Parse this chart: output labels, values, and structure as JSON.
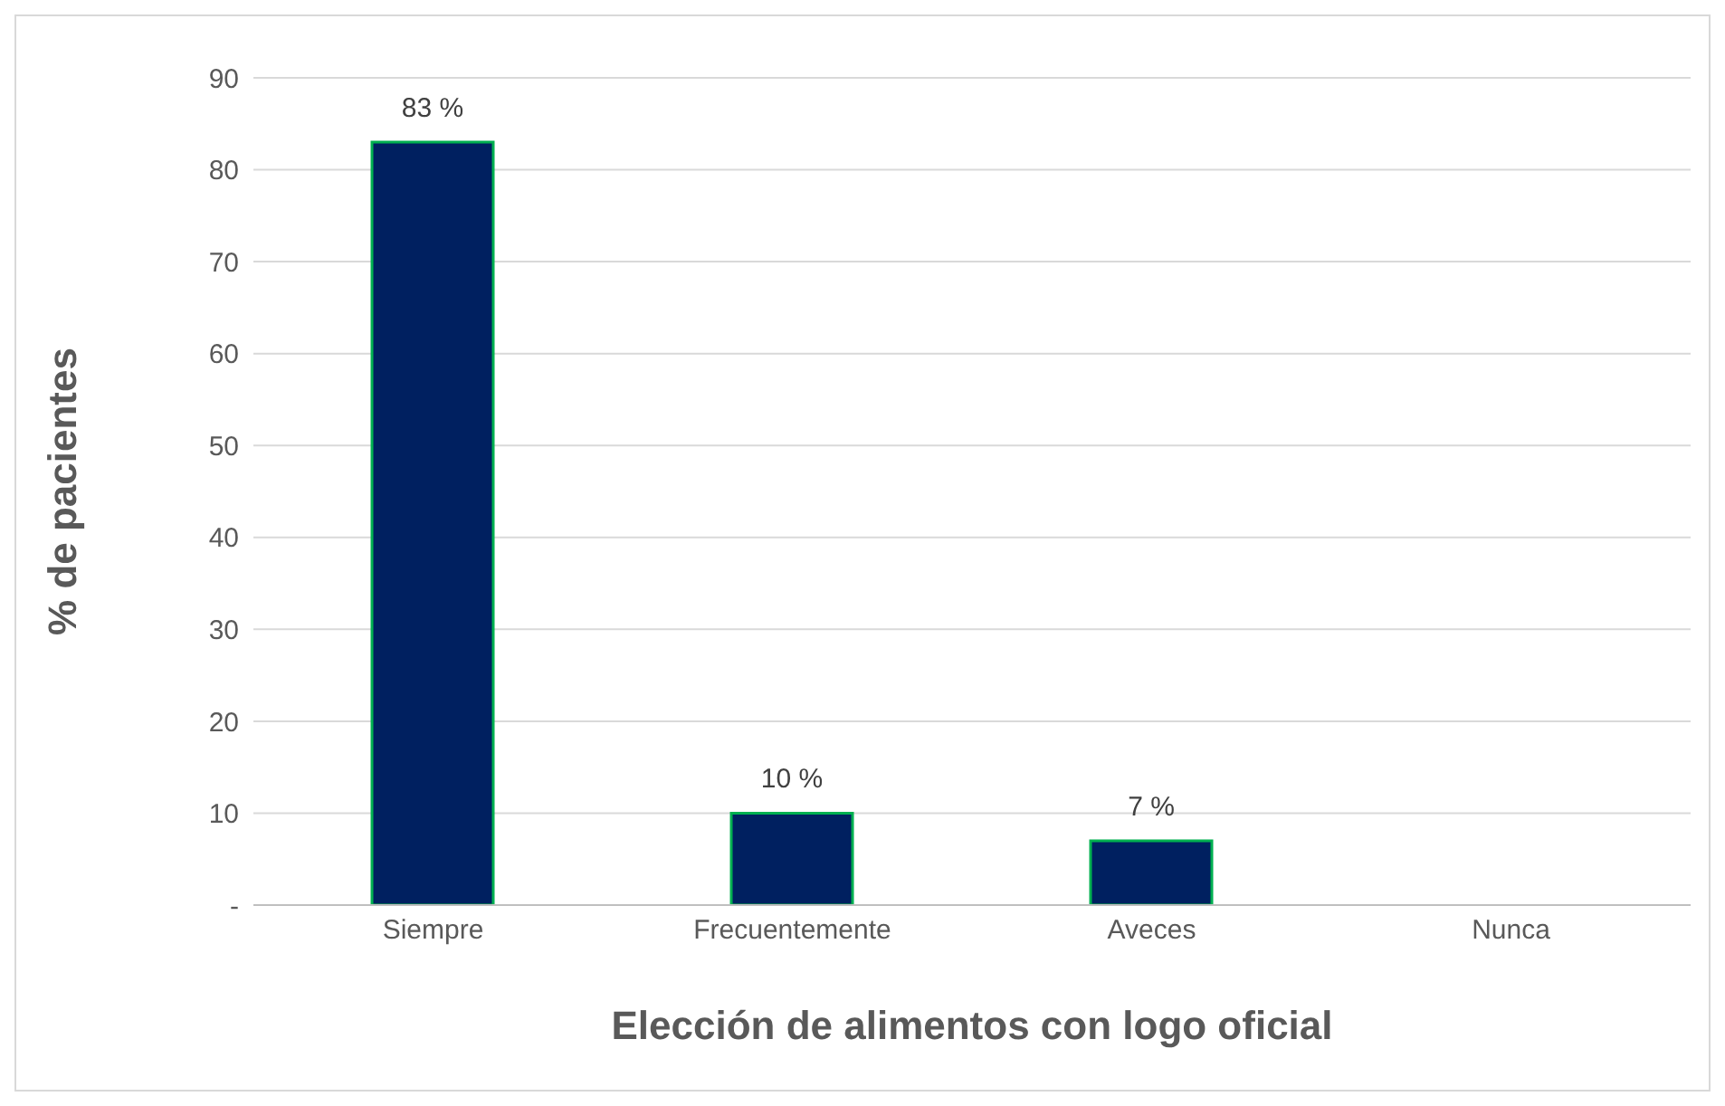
{
  "chart_data": {
    "type": "bar",
    "xlabel": "Elección de alimentos con logo oficial",
    "ylabel": "% de pacientes",
    "categories": [
      "Siempre",
      "Frecuentemente",
      "Aveces",
      "Nunca"
    ],
    "values": [
      83,
      10,
      7,
      0
    ],
    "value_labels": [
      "83 %",
      "10 %",
      "7 %",
      null
    ],
    "color": "#002060",
    "ylim": [
      0,
      90
    ],
    "yticks": [
      {
        "value": 0,
        "label": "-"
      },
      10,
      20,
      30,
      40,
      50,
      60,
      70,
      80,
      90
    ],
    "grid": "y"
  }
}
